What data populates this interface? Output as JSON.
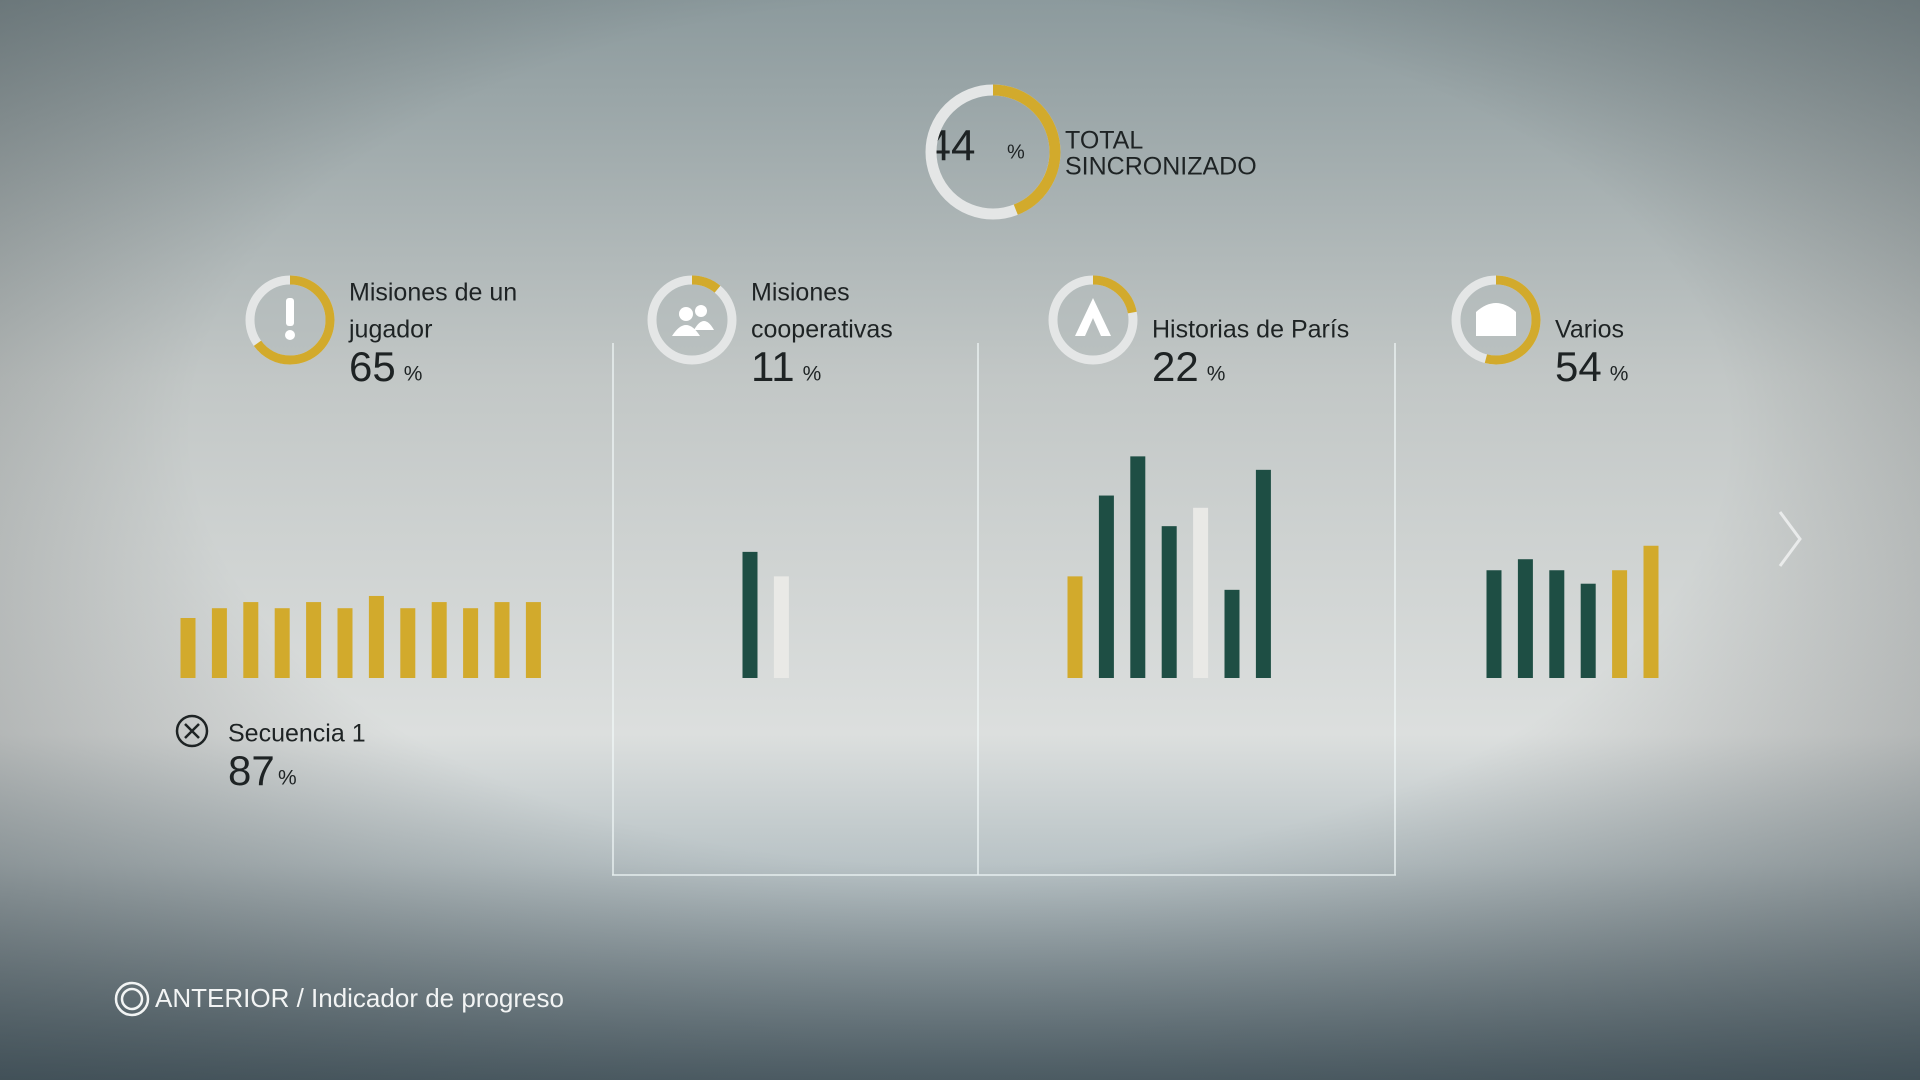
{
  "header": {
    "total_percent": 44,
    "percent_sign": "%",
    "label_line1": "TOTAL",
    "label_line2": "SINCRONIZADO"
  },
  "colors": {
    "gold": "#d2aa2c",
    "green": "#1e4e44",
    "white": "#e9e9e6",
    "track": "#e4e6e6"
  },
  "categories": [
    {
      "name_lines": [
        "Misiones de un",
        "jugador"
      ],
      "percent": 65,
      "bars": [
        {
          "value": 49,
          "color": "gold"
        },
        {
          "value": 57,
          "color": "gold"
        },
        {
          "value": 62,
          "color": "gold"
        },
        {
          "value": 57,
          "color": "gold"
        },
        {
          "value": 62,
          "color": "gold"
        },
        {
          "value": 57,
          "color": "gold"
        },
        {
          "value": 67,
          "color": "gold"
        },
        {
          "value": 57,
          "color": "gold"
        },
        {
          "value": 62,
          "color": "gold"
        },
        {
          "value": 57,
          "color": "gold"
        },
        {
          "value": 62,
          "color": "gold"
        },
        {
          "value": 62,
          "color": "gold"
        }
      ]
    },
    {
      "name_lines": [
        "Misiones",
        "cooperativas"
      ],
      "percent": 11,
      "bars": [
        {
          "value": 103,
          "color": "green"
        },
        {
          "value": 83,
          "color": "white"
        }
      ]
    },
    {
      "name_lines": [
        "Historias de París"
      ],
      "percent": 22,
      "bars": [
        {
          "value": 83,
          "color": "gold"
        },
        {
          "value": 149,
          "color": "green"
        },
        {
          "value": 181,
          "color": "green"
        },
        {
          "value": 124,
          "color": "green"
        },
        {
          "value": 139,
          "color": "white"
        },
        {
          "value": 72,
          "color": "green"
        },
        {
          "value": 170,
          "color": "green"
        }
      ]
    },
    {
      "name_lines": [
        "Varios"
      ],
      "percent": 54,
      "bars": [
        {
          "value": 88,
          "color": "green"
        },
        {
          "value": 97,
          "color": "green"
        },
        {
          "value": 88,
          "color": "green"
        },
        {
          "value": 77,
          "color": "green"
        },
        {
          "value": 88,
          "color": "gold"
        },
        {
          "value": 108,
          "color": "gold"
        }
      ]
    }
  ],
  "selection": {
    "label": "Secuencia 1",
    "percent": 87
  },
  "footer": {
    "hint": "ANTERIOR / Indicador de progreso"
  }
}
